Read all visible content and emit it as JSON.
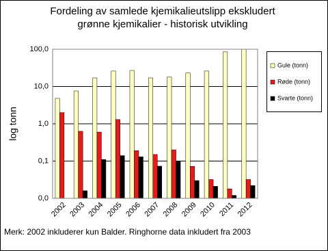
{
  "chart_data": {
    "type": "bar",
    "title": [
      "Fordeling av samlede kjemikalieutslipp ekskludert",
      "grønne kjemikalier - historisk utvikling"
    ],
    "y_label": "log tonn",
    "note": "Merk: 2002 inkluderer kun Balder. Ringhorne data inkludert fra 2003",
    "categories": [
      "2002",
      "2003",
      "2004",
      "2005",
      "2006",
      "2007",
      "2008",
      "2009",
      "2010",
      "2011",
      "2012"
    ],
    "series": [
      {
        "name": "Gule (tonn)",
        "color": "#ffffc0",
        "values": [
          4.8,
          7.6,
          17,
          26,
          27,
          17,
          18,
          23,
          26,
          85,
          100
        ]
      },
      {
        "name": "Røde (tonn)",
        "color": "#e41c1c",
        "values": [
          2.0,
          0.63,
          0.6,
          1.3,
          0.19,
          0.15,
          0.2,
          0.072,
          0.032,
          0.018,
          0.032
        ]
      },
      {
        "name": "Svarte (tonn)",
        "color": "#000000",
        "values": [
          null,
          0.016,
          0.11,
          0.14,
          0.13,
          0.073,
          0.1,
          0.03,
          0.021,
          0.012,
          0.022
        ]
      }
    ],
    "log_scale": true,
    "ylim": [
      0.01,
      100
    ],
    "yticks": [
      {
        "value": 0.01,
        "label": "0,0"
      },
      {
        "value": 0.1,
        "label": "0,1"
      },
      {
        "value": 1,
        "label": "1,0"
      },
      {
        "value": 10,
        "label": "10,0"
      },
      {
        "value": 100,
        "label": "100,0"
      }
    ],
    "grid": true,
    "legend": "right"
  }
}
